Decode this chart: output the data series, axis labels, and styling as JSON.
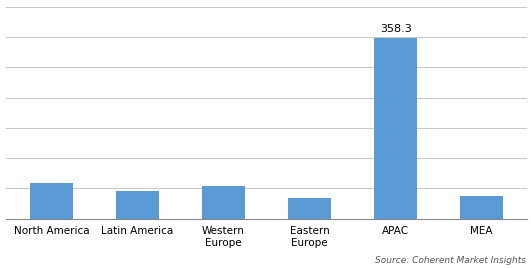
{
  "categories": [
    "North America",
    "Latin America",
    "Western\nEurope",
    "Eastern\nEurope",
    "APAC",
    "MEA"
  ],
  "values": [
    70,
    55,
    65,
    40,
    358.3,
    45
  ],
  "bar_color": "#5B9BD5",
  "annotate_index": 4,
  "annotate_value": "358.3",
  "ylim": [
    0,
    420
  ],
  "yticks": [
    0,
    60,
    120,
    180,
    240,
    300,
    360,
    420
  ],
  "grid_color": "#C8C8C8",
  "background_color": "#FFFFFF",
  "source_text": "Source: Coherent Market Insights",
  "bar_width": 0.5,
  "figsize": [
    5.31,
    2.68
  ],
  "dpi": 100
}
